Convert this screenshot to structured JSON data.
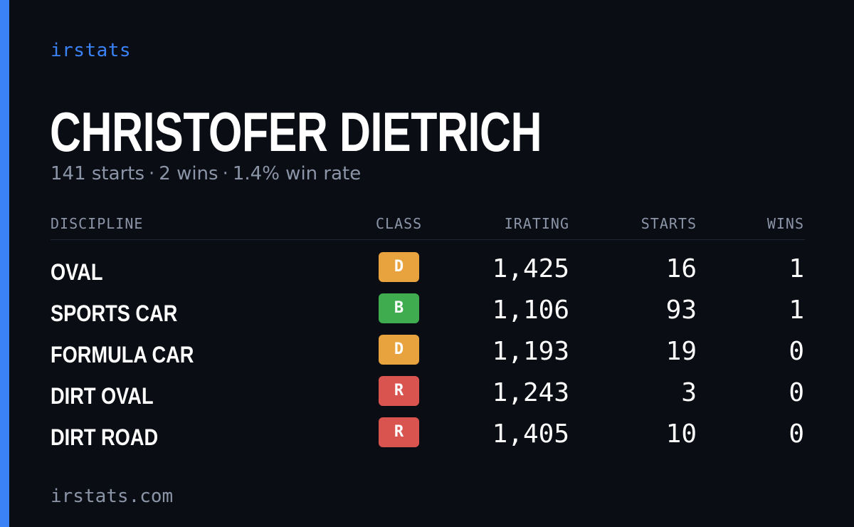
{
  "brand": "irstats",
  "driver": {
    "name": "CHRISTOFER DIETRICH",
    "starts_text": "141 starts",
    "wins_text": "2 wins",
    "winrate_text": "1.4% win rate",
    "separator": "·"
  },
  "table": {
    "headers": {
      "discipline": "DISCIPLINE",
      "class": "CLASS",
      "irating": "IRATING",
      "starts": "STARTS",
      "wins": "WINS"
    },
    "rows": [
      {
        "discipline": "OVAL",
        "class": "D",
        "irating": "1,425",
        "starts": "16",
        "wins": "1"
      },
      {
        "discipline": "SPORTS CAR",
        "class": "B",
        "irating": "1,106",
        "starts": "93",
        "wins": "1"
      },
      {
        "discipline": "FORMULA CAR",
        "class": "D",
        "irating": "1,193",
        "starts": "19",
        "wins": "0"
      },
      {
        "discipline": "DIRT OVAL",
        "class": "R",
        "irating": "1,243",
        "starts": "3",
        "wins": "0"
      },
      {
        "discipline": "DIRT ROAD",
        "class": "R",
        "irating": "1,405",
        "starts": "10",
        "wins": "0"
      }
    ]
  },
  "class_colors": {
    "D": "#e8a23e",
    "B": "#3fad4f",
    "R": "#d9534f"
  },
  "colors": {
    "accent": "#3b82f6",
    "background": "#0a0d14",
    "muted": "#8b95a7"
  },
  "footer": "irstats.com"
}
